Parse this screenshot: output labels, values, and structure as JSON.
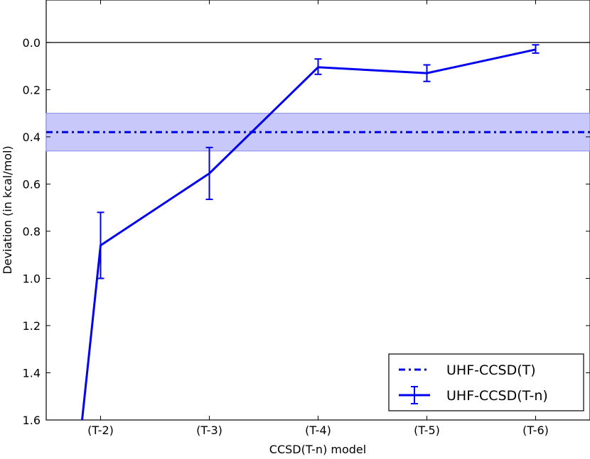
{
  "chart_data": {
    "type": "line",
    "xlabel": "CCSD(T-n) model",
    "ylabel": "Deviation (in kcal/mol)",
    "categories": [
      "(T-2)",
      "(T-3)",
      "(T-4)",
      "(T-5)",
      "(T-6)"
    ],
    "y_ticks": [
      "0.0",
      "0.2",
      "0.4",
      "0.6",
      "0.8",
      "1.0",
      "1.2",
      "1.4",
      "1.6"
    ],
    "ylim": [
      -0.18,
      1.6
    ],
    "y_inverted": true,
    "x_index_range": [
      -0.5,
      4.5
    ],
    "grid": false,
    "legend_position": "bottom-right",
    "series": [
      {
        "name": "UHF-CCSD(T-n)",
        "style": "solid with error bars",
        "color": "#0000ee",
        "x": [
          -0.17,
          0,
          1,
          2,
          3,
          4
        ],
        "values": [
          1.6,
          0.86,
          0.555,
          0.105,
          0.13,
          0.03
        ],
        "error_low": [
          null,
          0.72,
          0.445,
          0.07,
          0.095,
          0.01
        ],
        "error_high": [
          null,
          1.0,
          0.665,
          0.135,
          0.165,
          0.045
        ]
      },
      {
        "name": "UHF-CCSD(T)",
        "style": "dash-dot",
        "color": "#0000ee",
        "value": 0.38,
        "band": [
          0.3,
          0.46
        ],
        "band_color": "#c8c8fa"
      }
    ],
    "reference_line": 0.0
  }
}
